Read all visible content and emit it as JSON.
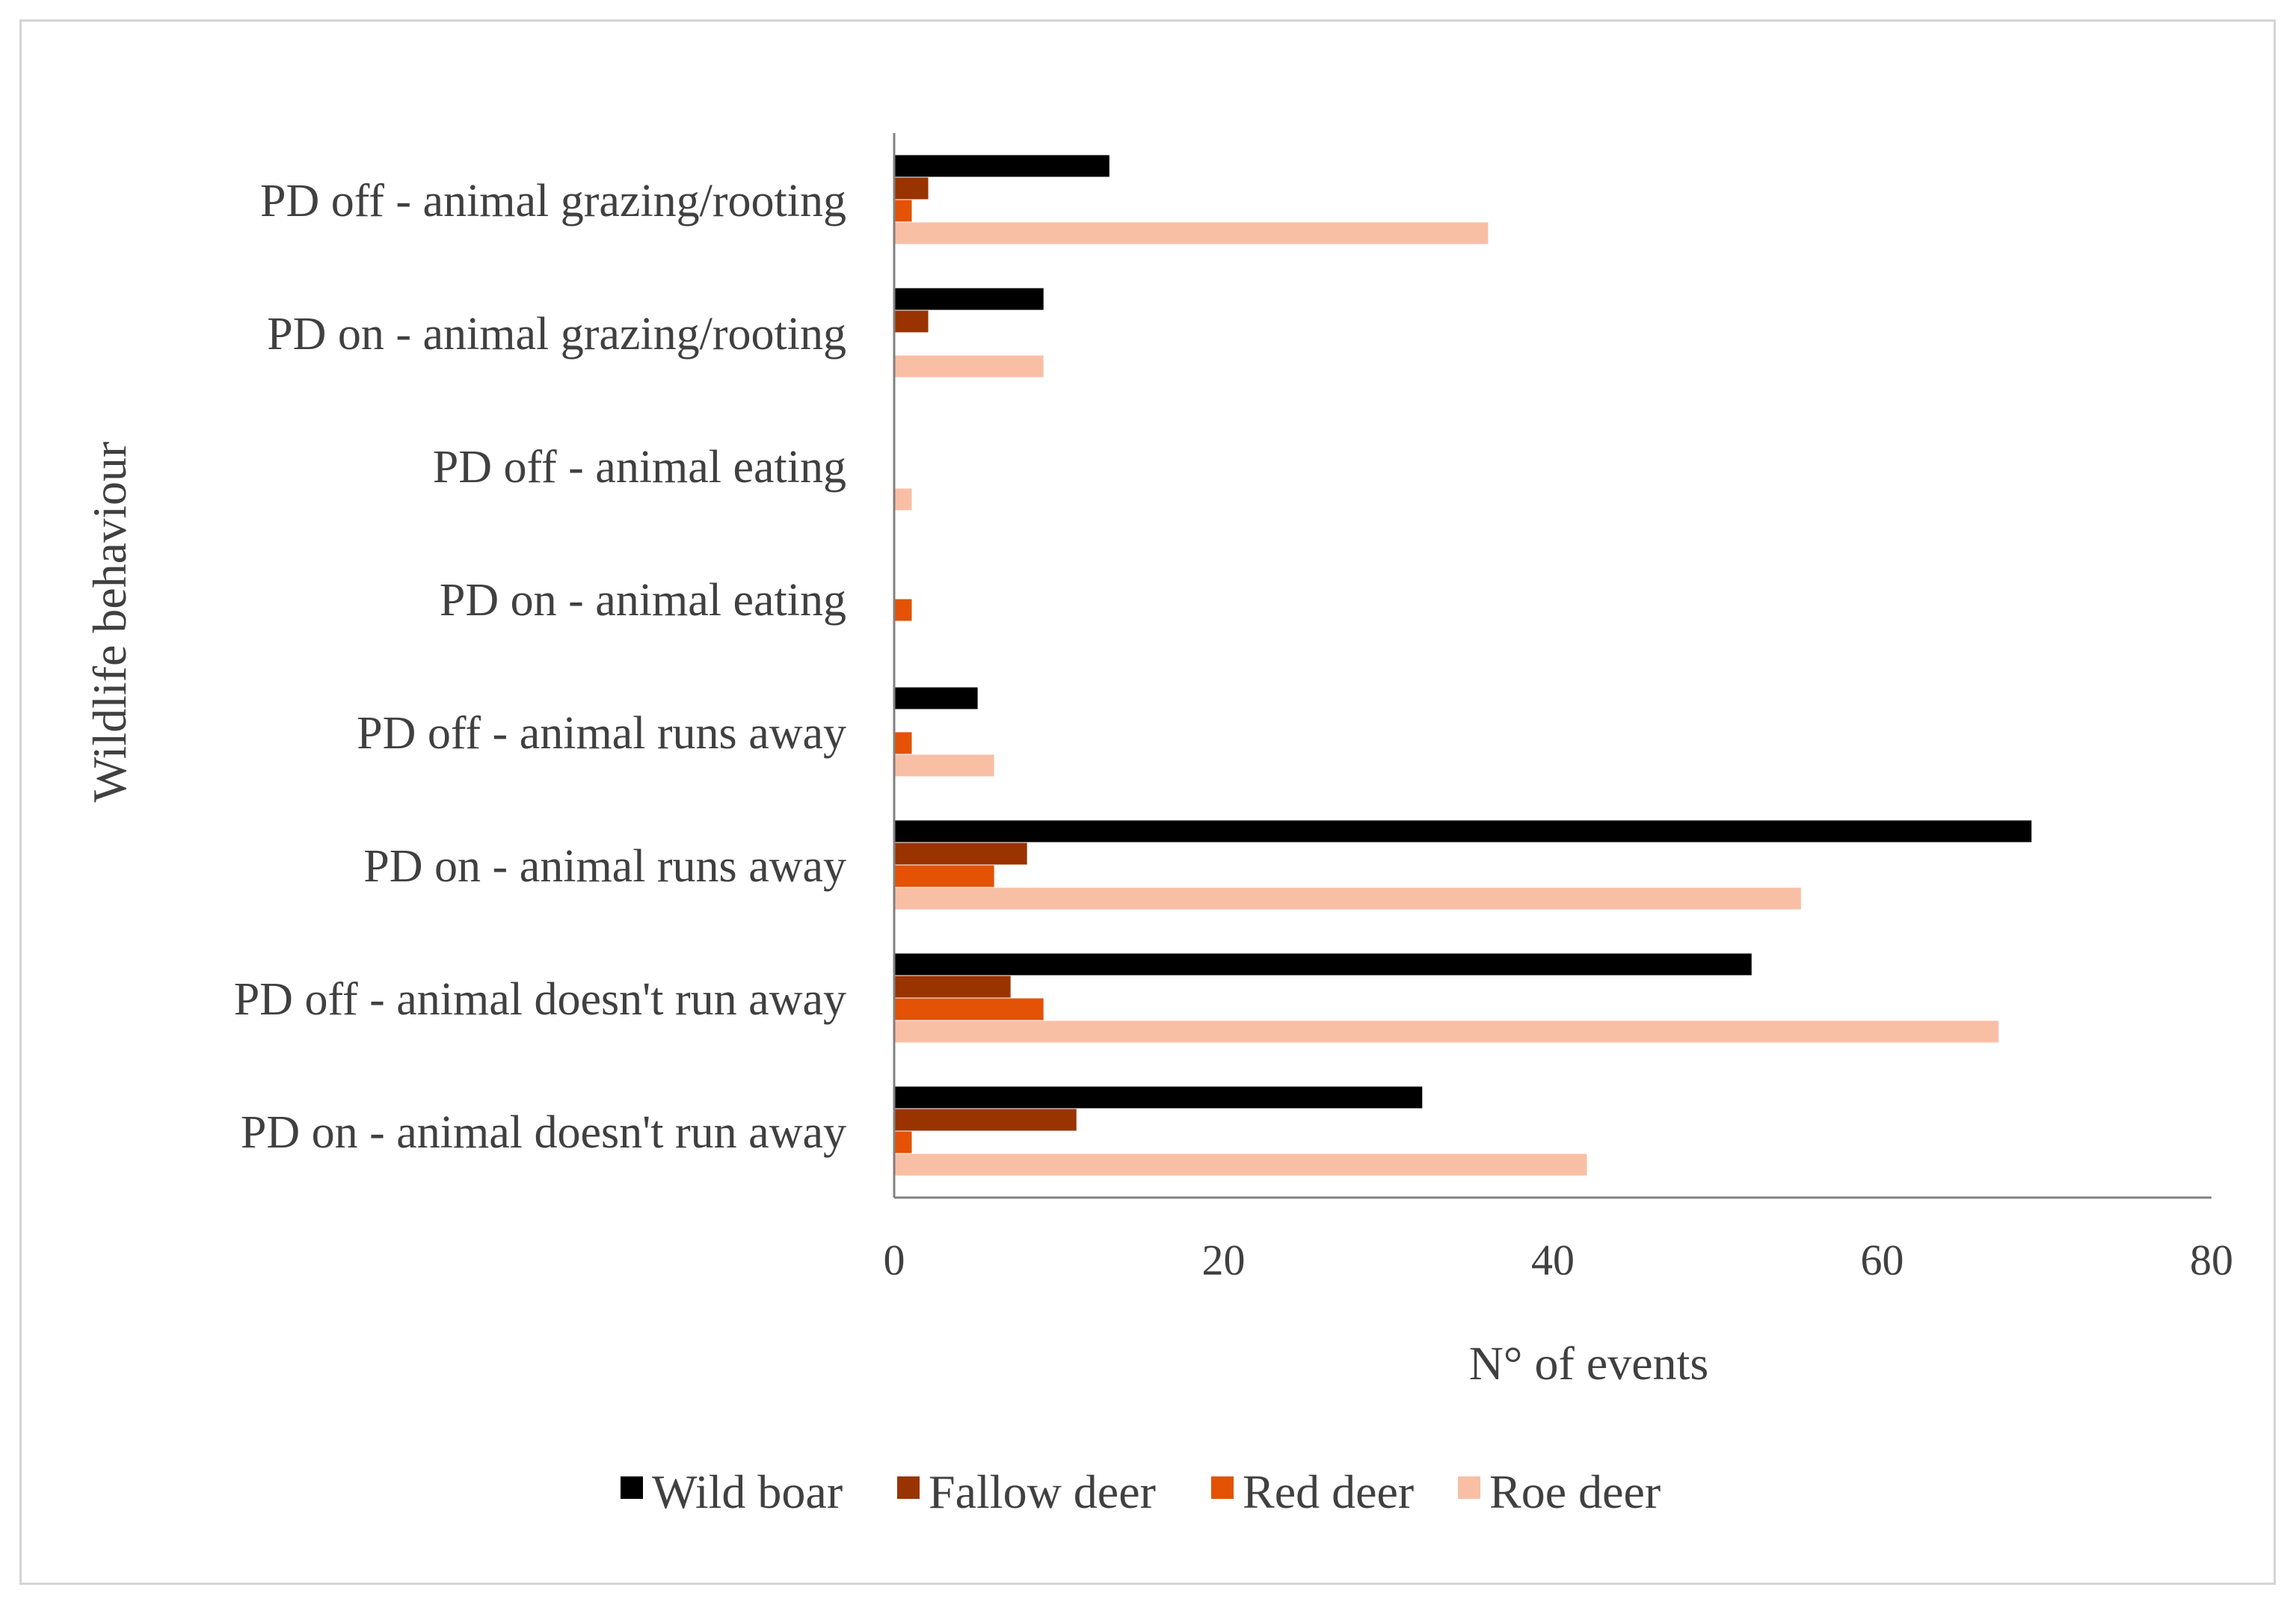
{
  "chart_data": {
    "type": "bar",
    "orientation": "horizontal",
    "title": "",
    "xlabel": "N° of events",
    "ylabel": "Wildlife behaviour",
    "xlim": [
      0,
      80
    ],
    "xticks": [
      0,
      20,
      40,
      60,
      80
    ],
    "grid": false,
    "legend_position": "bottom",
    "categories": [
      "PD off - animal grazing/rooting",
      "PD on - animal grazing/rooting",
      "PD off - animal eating",
      "PD on - animal eating",
      "PD off - animal runs away",
      "PD on - animal runs away",
      "PD off - animal doesn't run away",
      "PD on - animal doesn't run away"
    ],
    "series": [
      {
        "name": "Wild boar",
        "color": "#000000",
        "values": [
          13,
          9,
          0,
          0,
          5,
          69,
          52,
          32
        ]
      },
      {
        "name": "Fallow deer",
        "color": "#993300",
        "values": [
          2,
          2,
          0,
          0,
          0,
          8,
          7,
          11
        ]
      },
      {
        "name": "Red deer",
        "color": "#e35205",
        "values": [
          1,
          0,
          0,
          1,
          1,
          6,
          9,
          1
        ]
      },
      {
        "name": "Roe deer",
        "color": "#f9bfa5",
        "values": [
          36,
          9,
          1,
          0,
          6,
          55,
          67,
          42
        ]
      }
    ]
  }
}
